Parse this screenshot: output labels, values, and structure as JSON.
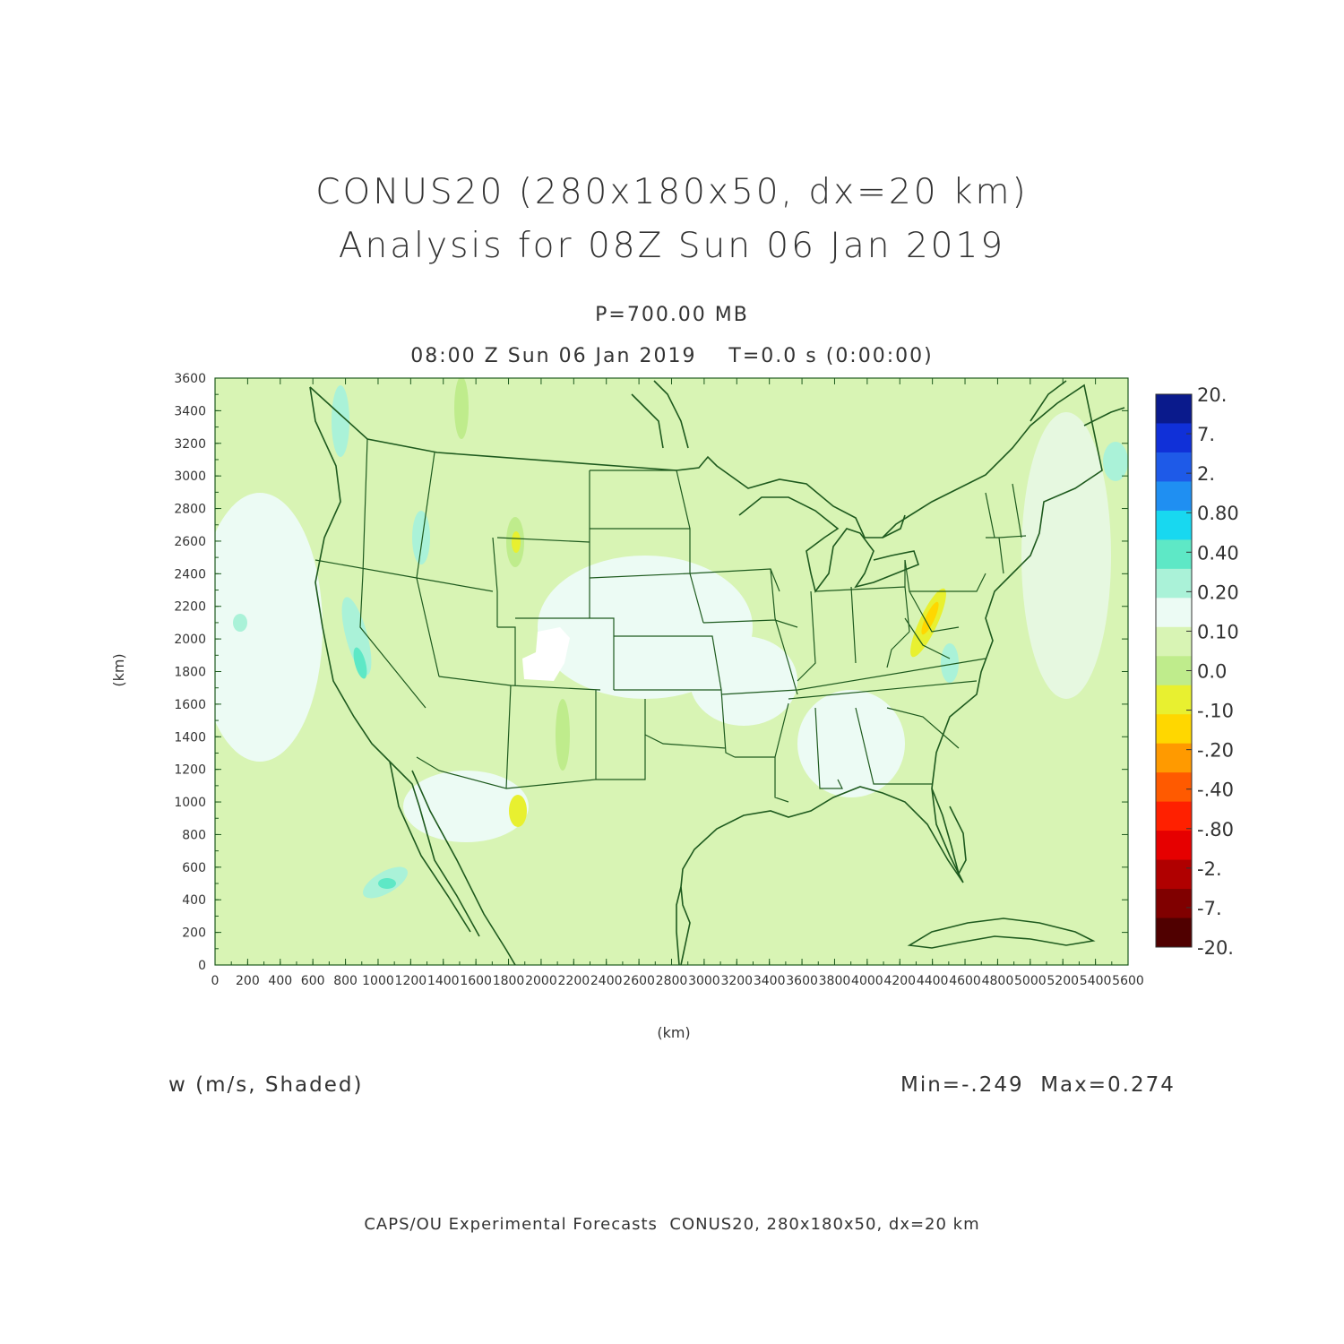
{
  "title_line1": "CONUS20 (280x180x50, dx=20 km)",
  "title_line2": "Analysis for 08Z Sun 06 Jan 2019",
  "level_label": "P=700.00 MB",
  "valid_time_label": "08:00 Z Sun 06 Jan 2019    T=0.0 s (0:00:00)",
  "variable_label": "w (m/s, Shaded)",
  "min_max_label": "Min=-.249  Max=0.274",
  "footer": "CAPS/OU Experimental Forecasts  CONUS20, 280x180x50, dx=20 km",
  "map": {
    "x_axis_label": "(km)",
    "y_axis_label": "(km)",
    "x_ticks": [
      "0",
      "200",
      "400",
      "600",
      "800",
      "1000",
      "1200",
      "1400",
      "1600",
      "1800",
      "2000",
      "2200",
      "2400",
      "2600",
      "2800",
      "3000",
      "3200",
      "3400",
      "3600",
      "3800",
      "4000",
      "4200",
      "4400",
      "4600",
      "4800",
      "5000",
      "5200",
      "5400",
      "5600"
    ],
    "y_ticks": [
      "0",
      "200",
      "400",
      "600",
      "800",
      "1000",
      "1200",
      "1400",
      "1600",
      "1800",
      "2000",
      "2200",
      "2400",
      "2600",
      "2800",
      "3000",
      "3200",
      "3400",
      "3600"
    ],
    "x_range_km": [
      0,
      5600
    ],
    "y_range_km": [
      0,
      3600
    ],
    "field": "w",
    "field_min": -0.249,
    "field_max": 0.274,
    "coastline_color": "#1e5a1e",
    "background_fill_color": "#d8f4b4"
  },
  "colorbar": {
    "levels": [
      "20.",
      "7.",
      "2.",
      "0.80",
      "0.40",
      "0.20",
      "0.10",
      "0.0",
      "-.10",
      "-.20",
      "-.40",
      "-.80",
      "-2.",
      "-7.",
      "-20."
    ],
    "colors": [
      "#0a1a8c",
      "#1030d8",
      "#1e5ae8",
      "#1f8ff2",
      "#18d8f0",
      "#5ee8c6",
      "#aaf2d8",
      "#ecfbf4",
      "#d8f4b4",
      "#bfec8c",
      "#e8f030",
      "#ffd700",
      "#ff9a00",
      "#ff5a00",
      "#ff2000",
      "#e60000",
      "#b00000",
      "#800000",
      "#500000"
    ]
  }
}
